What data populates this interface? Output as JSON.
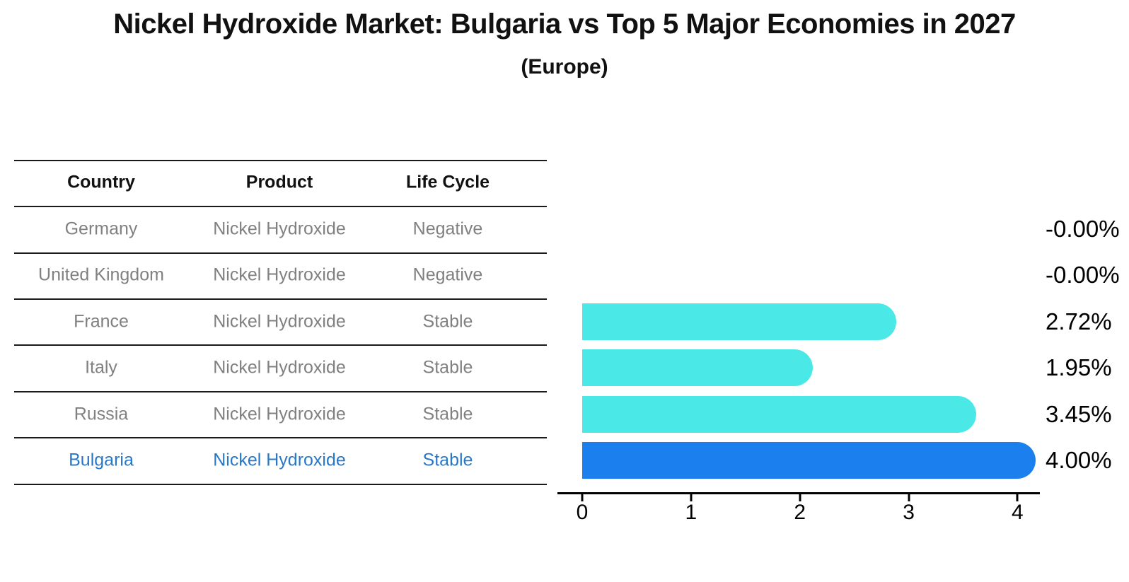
{
  "title": "Nickel Hydroxide Market: Bulgaria vs Top 5 Major Economies in 2027",
  "subtitle": "(Europe)",
  "colors": {
    "bar_default": "#4AE8E6",
    "bar_highlight": "#1B80EE",
    "highlight_text": "#2878C8",
    "row_text": "#808080",
    "header_text": "#111111",
    "axis": "#000000"
  },
  "table": {
    "headers": [
      "Country",
      "Product",
      "Life Cycle"
    ],
    "rows": [
      {
        "country": "Germany",
        "product": "Nickel Hydroxide",
        "life_cycle": "Negative",
        "highlight": false
      },
      {
        "country": "United Kingdom",
        "product": "Nickel Hydroxide",
        "life_cycle": "Negative",
        "highlight": false
      },
      {
        "country": "France",
        "product": "Nickel Hydroxide",
        "life_cycle": "Stable",
        "highlight": false
      },
      {
        "country": "Italy",
        "product": "Nickel Hydroxide",
        "life_cycle": "Stable",
        "highlight": false
      },
      {
        "country": "Russia",
        "product": "Nickel Hydroxide",
        "life_cycle": "Stable",
        "highlight": false
      },
      {
        "country": "Bulgaria",
        "product": "Nickel Hydroxide",
        "life_cycle": "Stable",
        "highlight": true
      }
    ]
  },
  "chart_data": {
    "type": "bar",
    "orientation": "horizontal",
    "title": "Nickel Hydroxide Market: Bulgaria vs Top 5 Major Economies in 2027 (Europe)",
    "categories": [
      "Germany",
      "United Kingdom",
      "France",
      "Italy",
      "Russia",
      "Bulgaria"
    ],
    "values": [
      -0.0,
      -0.0,
      2.72,
      1.95,
      3.45,
      4.0
    ],
    "value_labels": [
      "-0.00%",
      "-0.00%",
      "2.72%",
      "1.95%",
      "3.45%",
      "4.00%"
    ],
    "unit": "%",
    "xlim": [
      0,
      4
    ],
    "x_ticks": [
      "0",
      "1",
      "2",
      "3",
      "4"
    ],
    "highlight_index": 5,
    "grid": false,
    "legend": false
  }
}
